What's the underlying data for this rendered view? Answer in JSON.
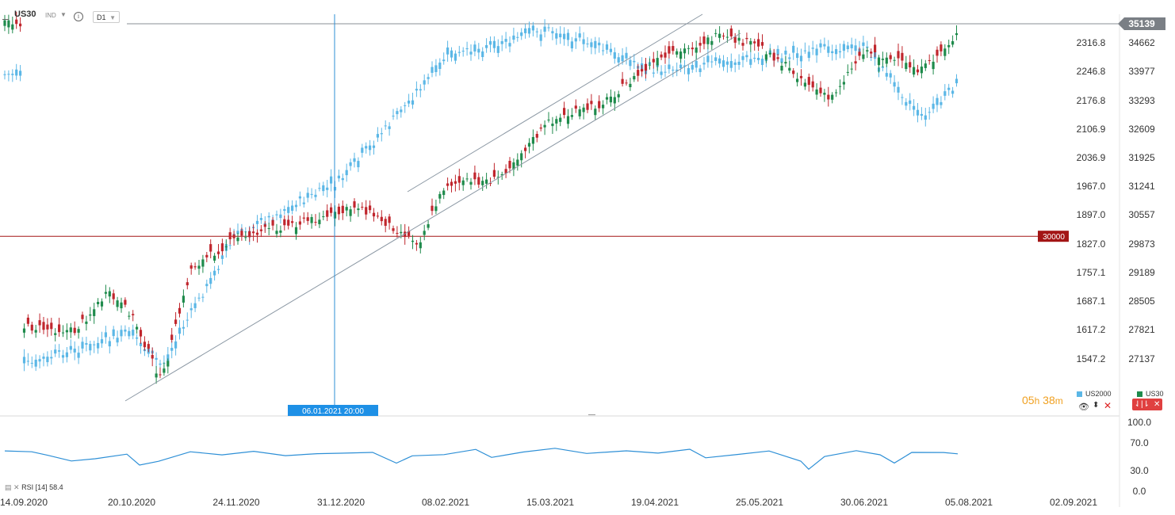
{
  "header": {
    "symbol": "US30",
    "indicator_tag": "IND",
    "info_icon": "info-icon",
    "timeframe": "D1"
  },
  "price_axis_left": [
    "2316.8",
    "2246.8",
    "2176.8",
    "2106.9",
    "2036.9",
    "1967.0",
    "1897.0",
    "1827.0",
    "1757.1",
    "1687.1",
    "1617.2",
    "1547.2"
  ],
  "price_axis_right": [
    "34662",
    "33977",
    "33293",
    "32609",
    "31925",
    "31241",
    "30557",
    "29873",
    "29189",
    "28505",
    "27821",
    "27137"
  ],
  "current_price": "35139",
  "level_30000": "30000",
  "crosshair_label": "06.01.2021 20:00",
  "date_axis": [
    "14.09.2020",
    "20.10.2020",
    "24.11.2020",
    "31.12.2020",
    "08.02.2021",
    "15.03.2021",
    "19.04.2021",
    "25.05.2021",
    "30.06.2021",
    "05.08.2021",
    "02.09.2021"
  ],
  "rsi": {
    "label": "RSI",
    "period": "[14]",
    "value": "58.4",
    "axis": [
      "100.0",
      "70.0",
      "30.0",
      "0.0"
    ]
  },
  "legend": {
    "us2000": "US2000",
    "us30": "US30"
  },
  "timer": {
    "h": "05",
    "h_unit": "h",
    "m": "38",
    "m_unit": "m"
  },
  "colors": {
    "up": "#1f8b4c",
    "down": "#c0262d",
    "overlay": "#5bb7e6",
    "rsi": "#2d8fd6",
    "channel": "#8a97a3",
    "crosshair": "#2d8fd6",
    "level": "#a31515",
    "price_tag": "#7a7f85"
  },
  "chart_data": {
    "type": "candlestick",
    "primary_series": "US30",
    "overlay_series": "US2000",
    "x_range": [
      "14.09.2020",
      "02.09.2021"
    ],
    "y_range_right": [
      26800,
      35500
    ],
    "us30_close_approx": [
      [
        "14.09.2020",
        27900
      ],
      [
        "01.10.2020",
        27800
      ],
      [
        "12.10.2020",
        28700
      ],
      [
        "20.10.2020",
        28200
      ],
      [
        "30.10.2020",
        26600
      ],
      [
        "09.11.2020",
        29300
      ],
      [
        "24.11.2020",
        30000
      ],
      [
        "04.12.2020",
        30200
      ],
      [
        "31.12.2020",
        30600
      ],
      [
        "06.01.2021",
        30800
      ],
      [
        "29.01.2021",
        29900
      ],
      [
        "08.02.2021",
        31300
      ],
      [
        "25.02.2021",
        31400
      ],
      [
        "15.03.2021",
        32800
      ],
      [
        "01.04.2021",
        33200
      ],
      [
        "19.04.2021",
        34200
      ],
      [
        "10.05.2021",
        34800
      ],
      [
        "25.05.2021",
        34600
      ],
      [
        "18.06.2021",
        33300
      ],
      [
        "30.06.2021",
        34500
      ],
      [
        "20.07.2021",
        34000
      ],
      [
        "05.08.2021",
        35139
      ]
    ],
    "us2000_close_approx": [
      [
        "14.09.2020",
        1530
      ],
      [
        "20.10.2020",
        1610
      ],
      [
        "30.10.2020",
        1530
      ],
      [
        "24.11.2020",
        1850
      ],
      [
        "31.12.2020",
        1980
      ],
      [
        "08.02.2021",
        2280
      ],
      [
        "15.03.2021",
        2350
      ],
      [
        "19.04.2021",
        2250
      ],
      [
        "25.05.2021",
        2280
      ],
      [
        "30.06.2021",
        2310
      ],
      [
        "20.07.2021",
        2130
      ],
      [
        "05.08.2021",
        2240
      ]
    ],
    "horizontal_level": 30000,
    "rsi_period": 14,
    "rsi_last": 58.4
  }
}
